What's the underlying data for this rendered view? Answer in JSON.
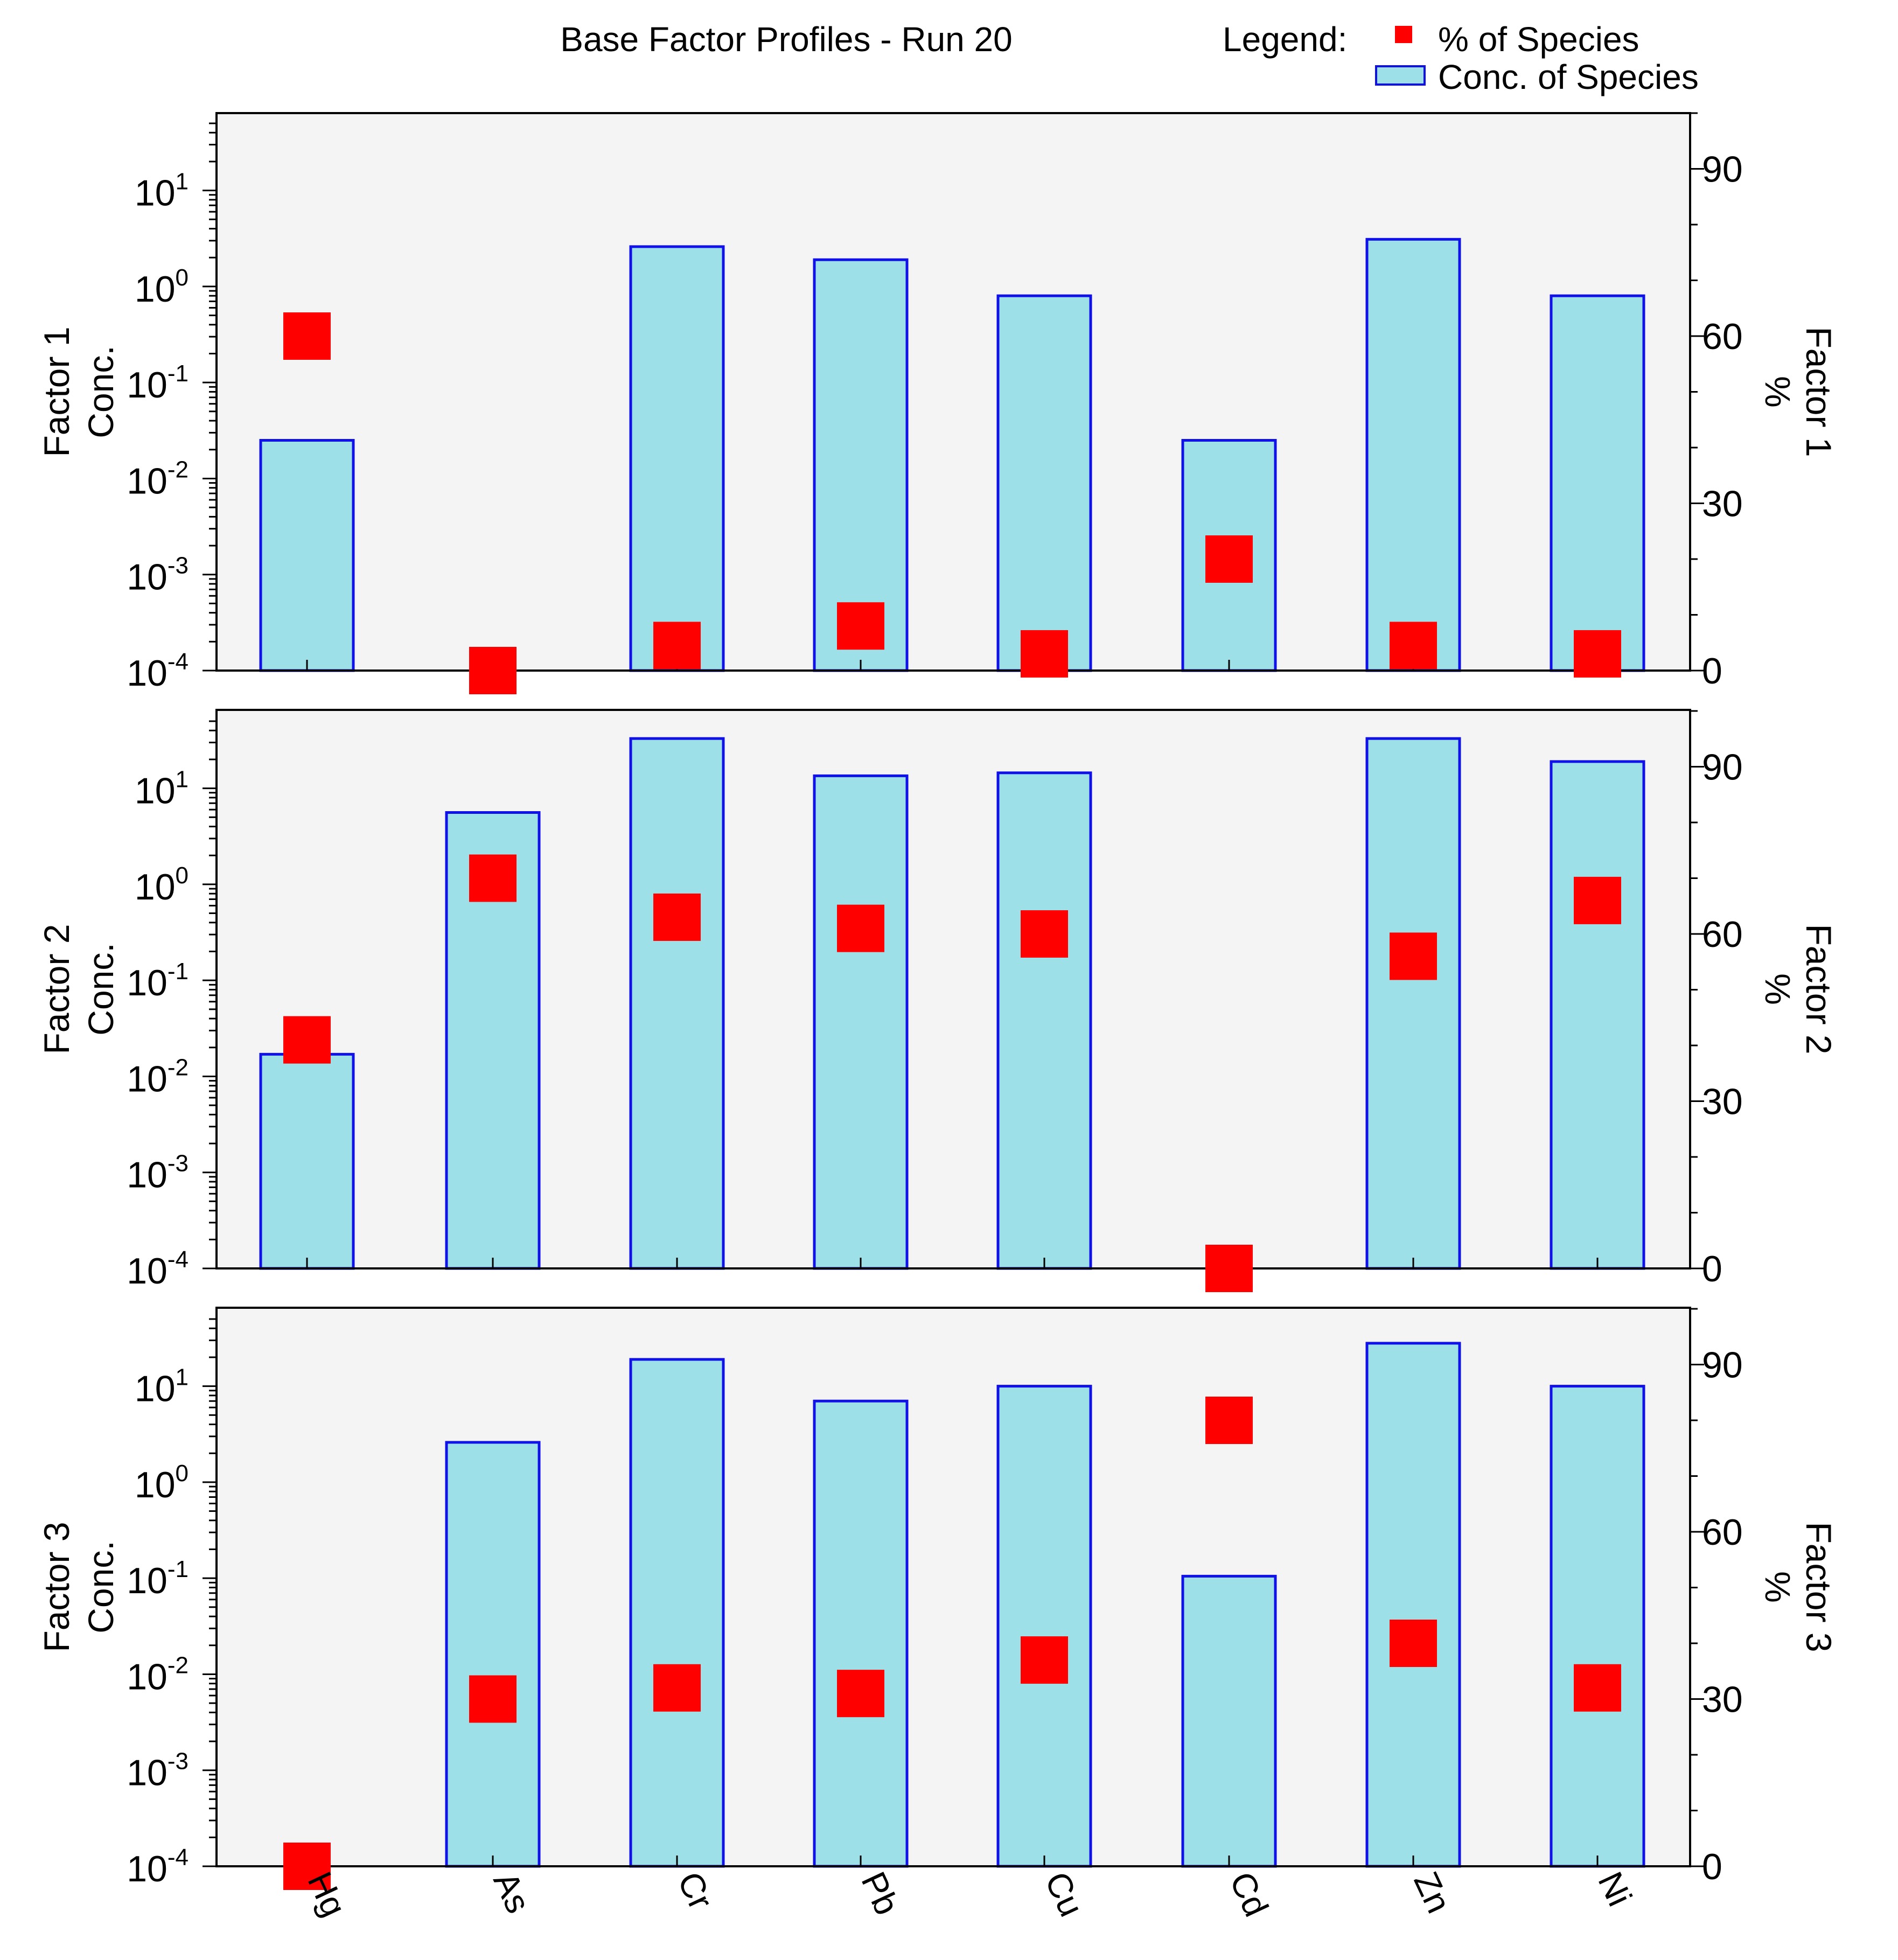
{
  "title": "Base Factor Profiles - Run 20",
  "legend": {
    "heading": "Legend:",
    "entries": [
      {
        "label": "% of Species",
        "marker": "red-square"
      },
      {
        "label": "Conc. of Species",
        "marker": "cyan-bar"
      }
    ]
  },
  "colors": {
    "bar_fill": "#9ee0e8",
    "bar_edge": "#1010e8",
    "marker": "#ff0000",
    "plot_bg": "#f4f4f4"
  },
  "chart_data": {
    "type": "bar",
    "categories": [
      "Hg",
      "As",
      "Cr",
      "Pb",
      "Cu",
      "Cd",
      "Zn",
      "Ni"
    ],
    "y_left": {
      "scale": "log",
      "ylim": [
        0.0001,
        50
      ],
      "ticks": [
        {
          "base": "10",
          "exp": "-4",
          "value": 0.0001
        },
        {
          "base": "10",
          "exp": "-3",
          "value": 0.001
        },
        {
          "base": "10",
          "exp": "-2",
          "value": 0.01
        },
        {
          "base": "10",
          "exp": "-1",
          "value": 0.1
        },
        {
          "base": "10",
          "exp": "0",
          "value": 1
        },
        {
          "base": "10",
          "exp": "1",
          "value": 10
        }
      ]
    },
    "y_right": {
      "scale": "linear",
      "ylim": [
        0,
        100
      ],
      "ticks": [
        0,
        30,
        60,
        90
      ]
    },
    "panels": [
      {
        "ylabel_left": [
          "Factor 1",
          "Conc."
        ],
        "ylabel_right": [
          "Factor 1",
          "%"
        ],
        "conc": [
          0.025,
          0,
          2.6,
          1.9,
          0.8,
          0.025,
          3.1,
          0.8
        ],
        "percent": [
          60,
          0,
          4.5,
          8,
          3,
          20,
          4.5,
          3
        ]
      },
      {
        "ylabel_left": [
          "Factor 2",
          "Conc."
        ],
        "ylabel_right": [
          "Factor 2",
          "%"
        ],
        "conc": [
          0.017,
          5.6,
          33,
          13.5,
          14.5,
          0,
          33,
          19
        ],
        "percent": [
          41,
          70,
          63,
          61,
          60,
          0,
          56,
          66
        ]
      },
      {
        "ylabel_left": [
          "Factor 3",
          "Conc."
        ],
        "ylabel_right": [
          "Factor 3",
          "%"
        ],
        "conc": [
          0,
          2.6,
          19,
          7,
          10,
          0.105,
          28,
          10
        ],
        "percent": [
          0,
          30,
          32,
          31,
          37,
          80,
          40,
          32
        ]
      }
    ]
  }
}
